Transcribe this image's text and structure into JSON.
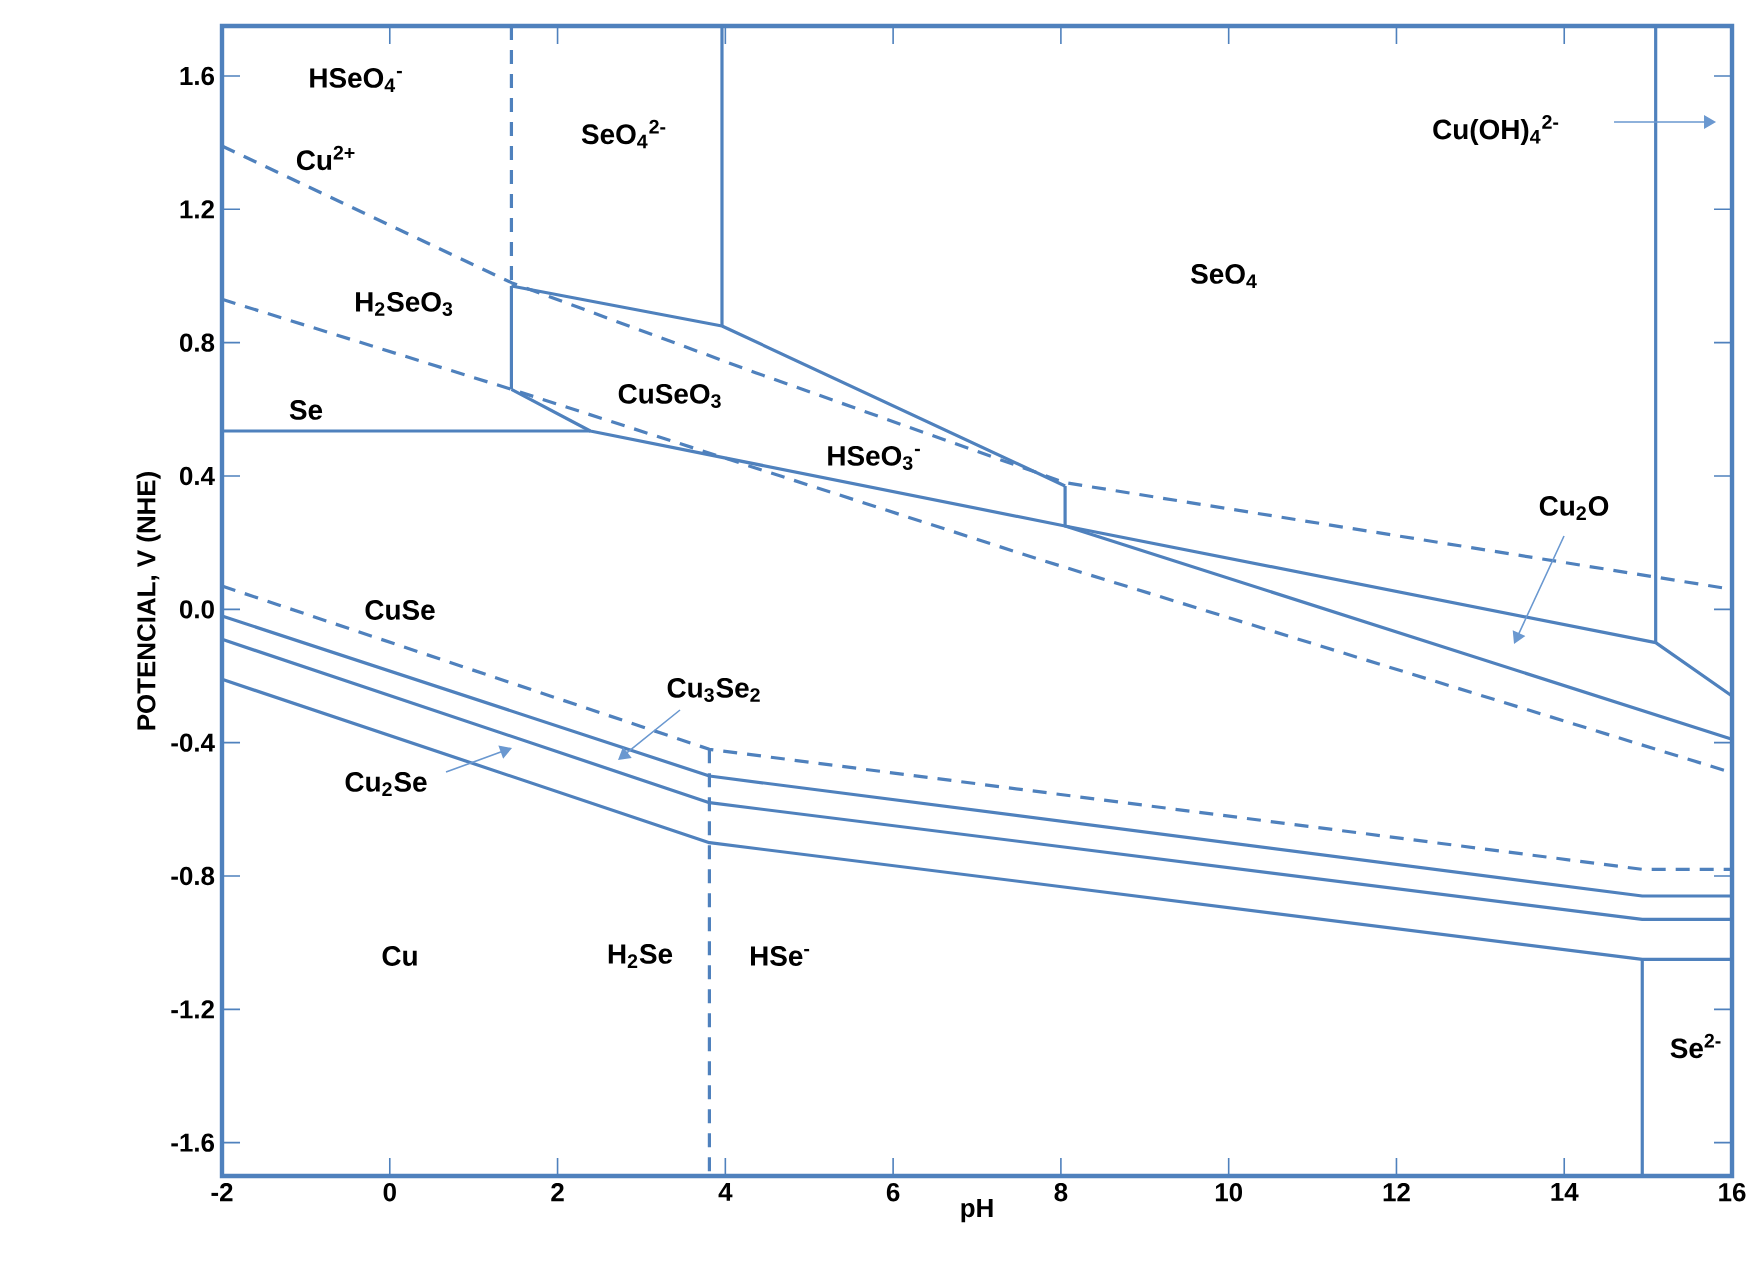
{
  "chart_data": {
    "type": "line",
    "xlabel": "pH",
    "ylabel": "POTENCIAL, V (NHE)",
    "xlim": [
      -2,
      16
    ],
    "ylim": [
      -1.7,
      1.75
    ],
    "xticks": [
      -2,
      0,
      2,
      4,
      6,
      8,
      10,
      12,
      14,
      16
    ],
    "yticks": [
      -1.6,
      -1.2,
      -0.8,
      -0.4,
      {
        "value": 0,
        "label": "0.0"
      },
      0.4,
      0.8,
      1.2,
      1.6
    ],
    "grid": false,
    "marker": "none",
    "series": [
      {
        "color": "#4f81bd",
        "line_style": "dashed",
        "x": [
          -2,
          1.45,
          4.36,
          8.05,
          16
        ],
        "values": [
          1.39,
          0.98,
          0.71,
          0.38,
          0.06
        ]
      },
      {
        "color": "#4f81bd",
        "line_style": "dashed",
        "x": [
          -2,
          1.45,
          7.74,
          16
        ],
        "values": [
          0.93,
          0.66,
          0.15,
          -0.49
        ]
      },
      {
        "color": "#4f81bd",
        "line_style": "dashed",
        "x": [
          1.45,
          1.45
        ],
        "values": [
          1.75,
          0.97
        ]
      },
      {
        "color": "#4f81bd",
        "line_style": "solid",
        "x": [
          -2,
          2.39
        ],
        "values": [
          0.535,
          0.535
        ]
      },
      {
        "color": "#4f81bd",
        "line_style": "solid",
        "x": [
          1.45,
          1.45
        ],
        "values": [
          0.97,
          0.66
        ]
      },
      {
        "color": "#4f81bd",
        "line_style": "solid",
        "x": [
          1.45,
          3.96,
          8.05
        ],
        "values": [
          0.97,
          0.85,
          0.37
        ]
      },
      {
        "color": "#4f81bd",
        "line_style": "solid",
        "x": [
          3.96,
          3.96
        ],
        "values": [
          1.75,
          0.85
        ]
      },
      {
        "color": "#4f81bd",
        "line_style": "solid",
        "x": [
          1.45,
          2.39,
          8.05,
          15.09,
          16
        ],
        "values": [
          0.66,
          0.535,
          0.25,
          -0.1,
          -0.26
        ]
      },
      {
        "color": "#4f81bd",
        "line_style": "solid",
        "x": [
          15.09,
          15.09
        ],
        "values": [
          1.75,
          -0.1
        ]
      },
      {
        "color": "#4f81bd",
        "line_style": "solid",
        "x": [
          8.05,
          8.05,
          16
        ],
        "values": [
          0.37,
          0.25,
          -0.39
        ]
      },
      {
        "color": "#4f81bd",
        "line_style": "dashed",
        "x": [
          -2,
          3.81,
          14.93,
          16
        ],
        "values": [
          0.07,
          -0.42,
          -0.78,
          -0.78
        ]
      },
      {
        "color": "#4f81bd",
        "line_style": "solid",
        "x": [
          -2,
          3.81,
          14.93,
          16
        ],
        "values": [
          -0.02,
          -0.5,
          -0.86,
          -0.86
        ]
      },
      {
        "color": "#4f81bd",
        "line_style": "solid",
        "x": [
          -2,
          3.81,
          14.93,
          16
        ],
        "values": [
          -0.09,
          -0.58,
          -0.93,
          -0.93
        ]
      },
      {
        "color": "#4f81bd",
        "line_style": "solid",
        "x": [
          -2,
          3.81,
          14.93,
          16
        ],
        "values": [
          -0.21,
          -0.7,
          -1.05,
          -1.05
        ]
      },
      {
        "color": "#4f81bd",
        "line_style": "solid",
        "x": [
          14.93,
          14.93
        ],
        "values": [
          -1.05,
          -1.7
        ]
      },
      {
        "color": "#4f81bd",
        "line_style": "dashed",
        "x": [
          3.81,
          3.81
        ],
        "values": [
          -0.42,
          -1.7
        ]
      }
    ],
    "annotations": [
      "HSeO$_{4}$$^{-}$",
      "Cu$^{2+}$",
      "SeO$_{4}$$^{2-}$",
      "H$_{2}$SeO$_{3}$",
      "Se",
      "CuSeO$_{3}$",
      "SeO$_{4}$",
      "HSeO$_{3}$$^{-}$",
      "Cu(OH)$_{4}$$^{2-}$",
      "Cu$_{2}$O",
      "CuSe",
      "Cu$_{3}$Se$_{2}$",
      "Cu$_{2}$Se",
      "Cu",
      "H$_{2}$Se",
      "HSe$^{-}$",
      "Se$^{2-}$"
    ]
  }
}
